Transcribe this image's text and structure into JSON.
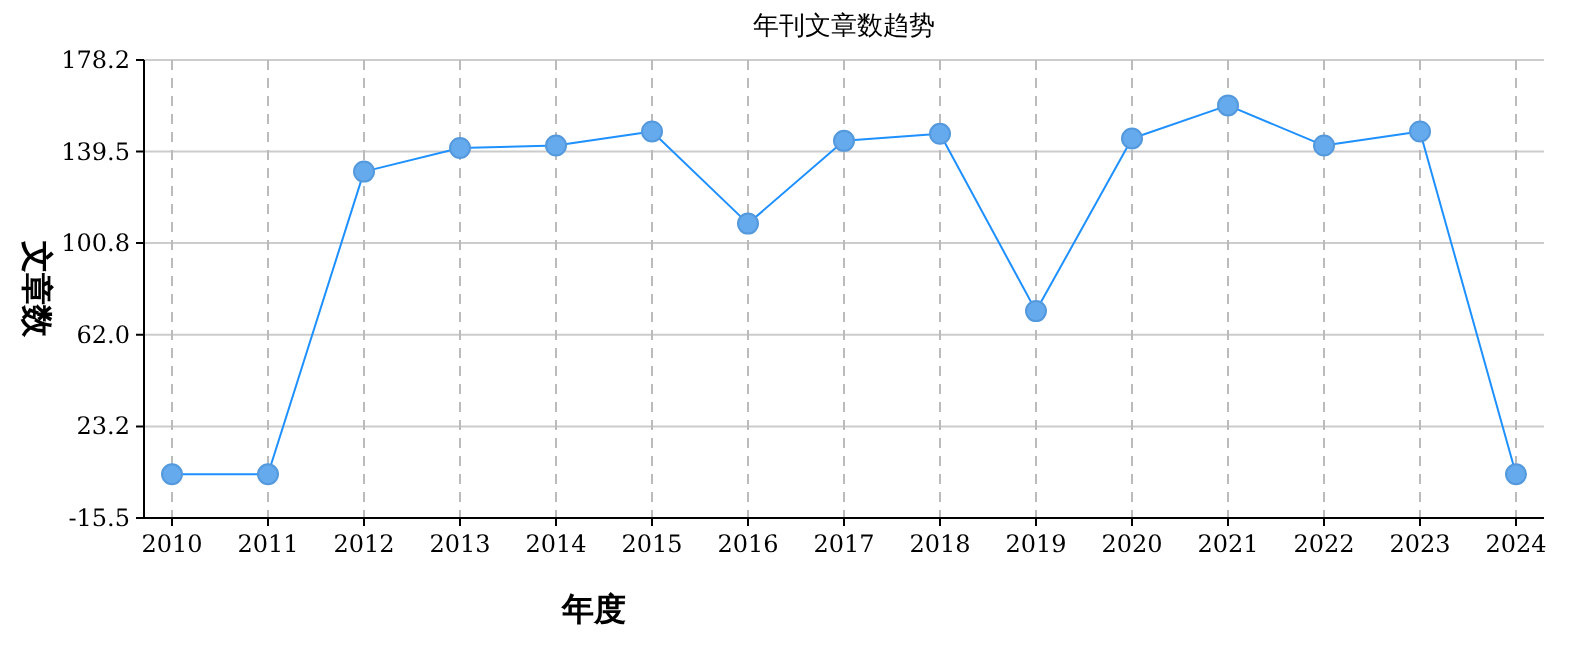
{
  "chart_data": {
    "type": "line",
    "title": "年刊文章数趋势",
    "xlabel": "年度",
    "ylabel": "文章数",
    "categories": [
      "2010",
      "2011",
      "2012",
      "2013",
      "2014",
      "2015",
      "2016",
      "2017",
      "2018",
      "2019",
      "2020",
      "2021",
      "2022",
      "2023",
      "2024"
    ],
    "series": [
      {
        "color": "#1e90ff",
        "values": [
          3,
          3,
          131,
          141,
          142,
          148,
          109,
          144,
          147,
          72,
          145,
          159,
          142,
          148,
          3
        ]
      }
    ],
    "ylim": [
      -15.5,
      178.2
    ],
    "yticks": [
      -15.5,
      23.2,
      {
        "value": 62,
        "label": "62.0"
      },
      100.8,
      139.5,
      178.2
    ],
    "grid": true,
    "marker": "circle",
    "line_style": "solid"
  }
}
